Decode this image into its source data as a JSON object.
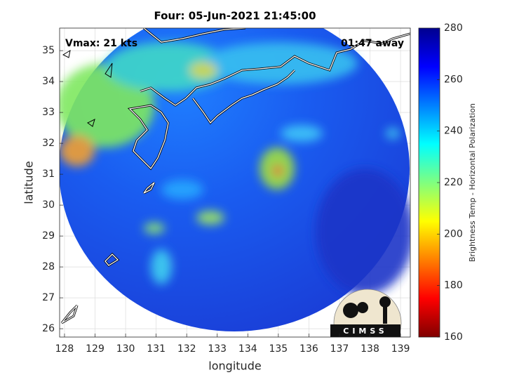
{
  "chart_data": {
    "type": "map",
    "title": "Four: 05-Jun-2021 21:45:00",
    "annotations": [
      "Vmax: 21 kts",
      "01:47 away"
    ],
    "xlabel": "longitude",
    "ylabel": "latitude",
    "xlim": [
      127.84,
      139.32
    ],
    "xticks": [
      128,
      129,
      130,
      131,
      132,
      133,
      134,
      135,
      136,
      137,
      138,
      139
    ],
    "ylim": [
      25.73,
      35.73
    ],
    "yticks": [
      26,
      27,
      28,
      29,
      30,
      31,
      32,
      33,
      34,
      35
    ],
    "grid": true,
    "colorbar": {
      "label": "Brightness Temp - Horizontal Polarization",
      "lim": [
        160,
        280
      ],
      "ticks": [
        160,
        180,
        200,
        220,
        240,
        260,
        280
      ],
      "colormap": "jet"
    },
    "logo": "CIMSS"
  }
}
